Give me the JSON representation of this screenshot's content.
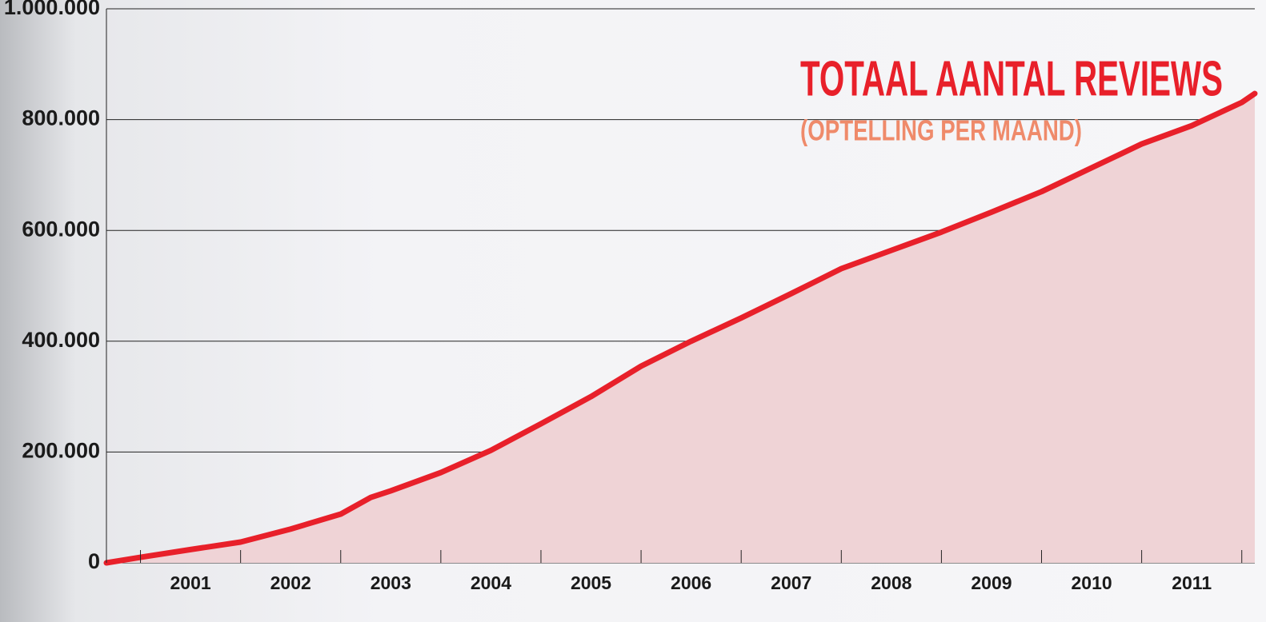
{
  "chart_data": {
    "type": "area",
    "title": "TOTAAL AANTAL REVIEWS",
    "subtitle": "(OPTELLING PER MAAND)",
    "color": "#e8202a",
    "fill": "#efd3d6",
    "x": [
      2000.66,
      2001.0,
      2001.5,
      2002.0,
      2002.5,
      2003.0,
      2003.3,
      2003.5,
      2004.0,
      2004.5,
      2005.0,
      2005.5,
      2006.0,
      2006.5,
      2007.0,
      2007.5,
      2008.0,
      2008.5,
      2009.0,
      2009.5,
      2010.0,
      2010.5,
      2011.0,
      2011.5,
      2012.0,
      2012.13
    ],
    "values": [
      0,
      10000,
      24000,
      37500,
      61000,
      88000,
      118000,
      130000,
      163000,
      203000,
      251000,
      300000,
      355000,
      400000,
      442000,
      486000,
      531000,
      564000,
      597000,
      633000,
      670000,
      713000,
      756000,
      789000,
      831000,
      847000
    ],
    "xlim": [
      2000.66,
      2012.13
    ],
    "xticks": [
      {
        "value": 2001.5,
        "label": "2001"
      },
      {
        "value": 2002.5,
        "label": "2002"
      },
      {
        "value": 2003.5,
        "label": "2003"
      },
      {
        "value": 2004.5,
        "label": "2004"
      },
      {
        "value": 2005.5,
        "label": "2005"
      },
      {
        "value": 2006.5,
        "label": "2006"
      },
      {
        "value": 2007.5,
        "label": "2007"
      },
      {
        "value": 2008.5,
        "label": "2008"
      },
      {
        "value": 2009.5,
        "label": "2009"
      },
      {
        "value": 2010.5,
        "label": "2010"
      },
      {
        "value": 2011.5,
        "label": "2011"
      }
    ],
    "ylim": [
      0,
      1000000
    ],
    "yticks": [
      0,
      {
        "value": 200000,
        "label": "200.000"
      },
      {
        "value": 400000,
        "label": "400.000"
      },
      {
        "value": 600000,
        "label": "600.000"
      },
      {
        "value": 800000,
        "label": "800.000"
      },
      {
        "value": 1000000,
        "label": "1.000.000"
      }
    ],
    "grid": true
  }
}
